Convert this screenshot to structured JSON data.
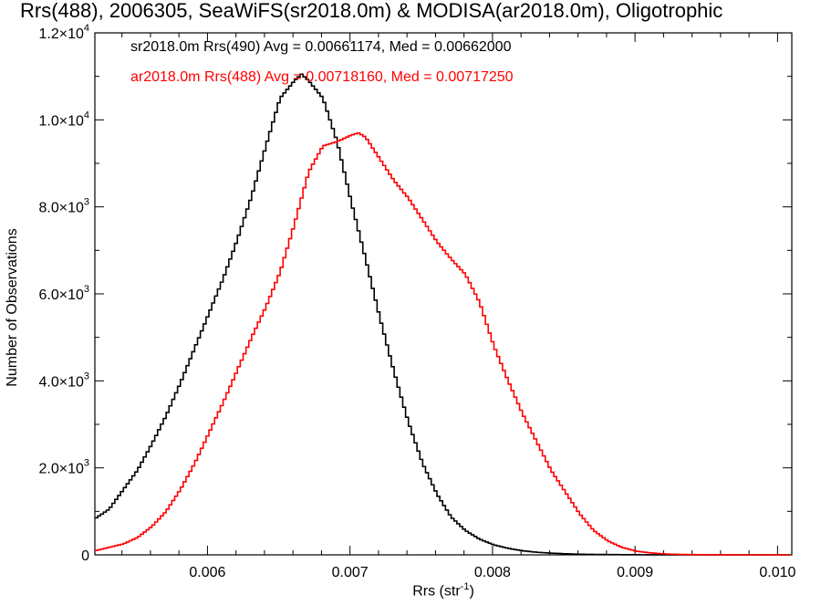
{
  "chart_data": {
    "type": "line",
    "title": "Rrs(488), 2006305, SeaWiFS(sr2018.0m) & MODISA(ar2018.0m), Oligotrophic",
    "xlabel_main": "Rrs (str",
    "xlabel_sup": "-1",
    "xlabel_end": ")",
    "ylabel": "Number of Observations",
    "xlim": [
      0.00521,
      0.0101
    ],
    "ylim": [
      0,
      12000
    ],
    "x_ticks": [
      {
        "value": 0.006,
        "label": "0.006"
      },
      {
        "value": 0.007,
        "label": "0.007"
      },
      {
        "value": 0.008,
        "label": "0.008"
      },
      {
        "value": 0.009,
        "label": "0.009"
      },
      {
        "value": 0.01,
        "label": "0.010"
      }
    ],
    "y_ticks": [
      {
        "value": 0,
        "base": "0",
        "sup": ""
      },
      {
        "value": 2000,
        "base": "2.0×10",
        "sup": "3"
      },
      {
        "value": 4000,
        "base": "4.0×10",
        "sup": "3"
      },
      {
        "value": 6000,
        "base": "6.0×10",
        "sup": "3"
      },
      {
        "value": 8000,
        "base": "8.0×10",
        "sup": "3"
      },
      {
        "value": 10000,
        "base": "1.0×10",
        "sup": "4"
      },
      {
        "value": 12000,
        "base": "1.2×10",
        "sup": "4"
      }
    ],
    "grid": false,
    "series": [
      {
        "legend": "sr2018.0m Rrs(490) Avg = 0.00661174, Med = 0.00662000",
        "color": "#000000",
        "x": [
          0.00521,
          0.0053,
          0.0054,
          0.0055,
          0.0056,
          0.0057,
          0.0058,
          0.0059,
          0.006,
          0.0061,
          0.0062,
          0.0063,
          0.0064,
          0.0065,
          0.0066,
          0.00665,
          0.0067,
          0.0068,
          0.0069,
          0.007,
          0.0071,
          0.0072,
          0.0073,
          0.0074,
          0.0075,
          0.0076,
          0.0077,
          0.0078,
          0.0079,
          0.008,
          0.0081,
          0.0082,
          0.0083,
          0.0084,
          0.0085,
          0.0086,
          0.0088,
          0.009,
          0.0092,
          0.0094,
          0.0097,
          0.0101
        ],
        "y": [
          850,
          1050,
          1500,
          1950,
          2550,
          3200,
          3950,
          4750,
          5550,
          6350,
          7250,
          8250,
          9400,
          10500,
          10900,
          11050,
          10900,
          10500,
          9500,
          8100,
          6800,
          5450,
          4200,
          3050,
          2100,
          1400,
          870,
          560,
          360,
          230,
          150,
          95,
          60,
          40,
          25,
          15,
          7,
          3,
          1,
          0,
          0,
          0
        ]
      },
      {
        "legend": "ar2018.0m Rrs(488) Avg = 0.00718160, Med = 0.00717250",
        "color": "#ff0000",
        "x": [
          0.00521,
          0.0054,
          0.0055,
          0.0056,
          0.0057,
          0.0058,
          0.0059,
          0.006,
          0.0061,
          0.0062,
          0.0063,
          0.0064,
          0.0065,
          0.0066,
          0.0067,
          0.0068,
          0.0069,
          0.007,
          0.00705,
          0.0071,
          0.0072,
          0.0073,
          0.0074,
          0.0075,
          0.0076,
          0.0077,
          0.0078,
          0.0079,
          0.008,
          0.0081,
          0.0082,
          0.0083,
          0.0084,
          0.0085,
          0.0086,
          0.0087,
          0.0088,
          0.0089,
          0.009,
          0.0091,
          0.0092,
          0.0093,
          0.0095,
          0.0097,
          0.0101
        ],
        "y": [
          100,
          250,
          400,
          650,
          1000,
          1500,
          2100,
          2800,
          3500,
          4250,
          5000,
          5700,
          6500,
          7600,
          8800,
          9400,
          9500,
          9650,
          9700,
          9600,
          9100,
          8600,
          8200,
          7700,
          7200,
          6800,
          6450,
          5800,
          4800,
          4000,
          3250,
          2600,
          1950,
          1450,
          950,
          560,
          320,
          170,
          85,
          45,
          22,
          10,
          3,
          0,
          0
        ]
      }
    ]
  }
}
